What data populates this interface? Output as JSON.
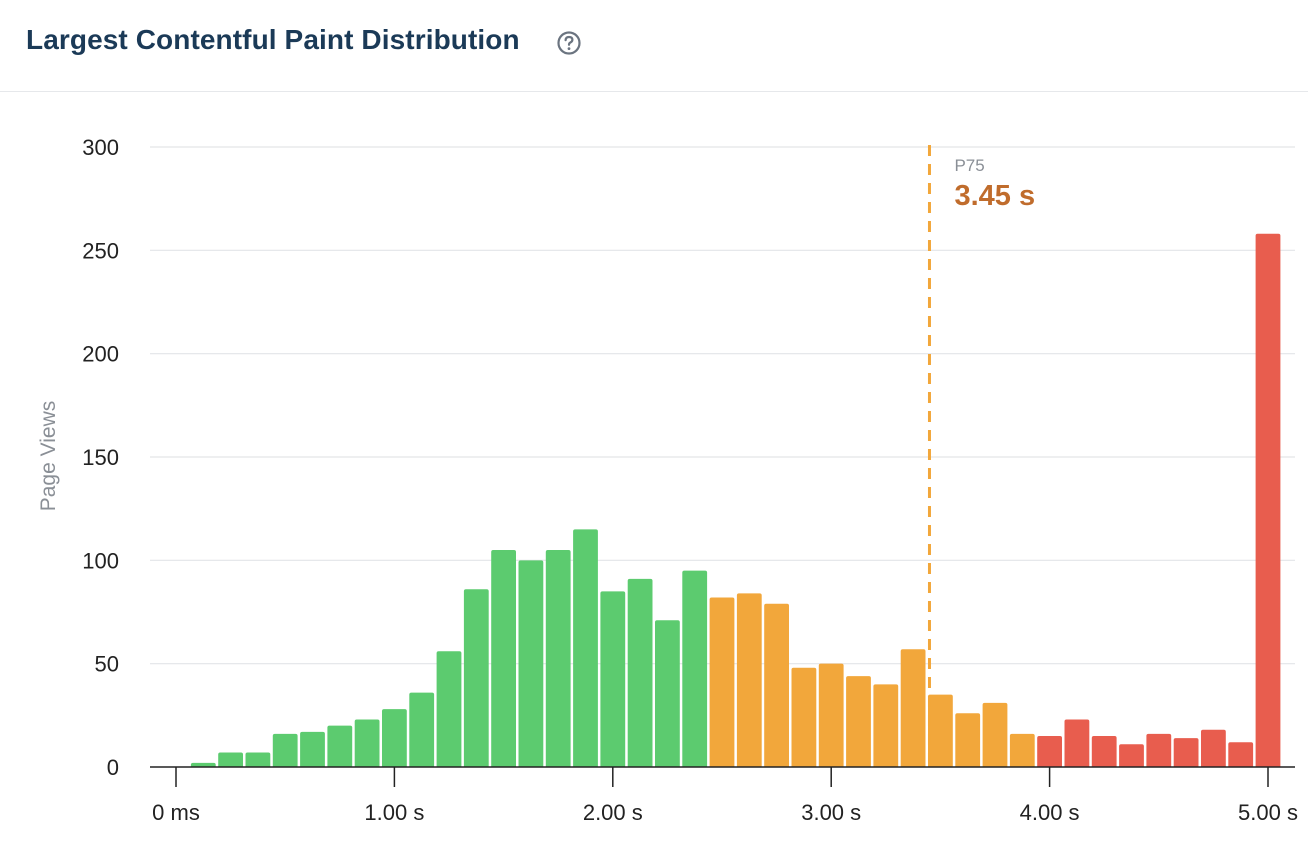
{
  "header": {
    "title": "Largest Contentful Paint Distribution",
    "help_icon": "question-circle-icon"
  },
  "chart_data": {
    "type": "bar",
    "title": "Largest Contentful Paint Distribution",
    "xlabel": "",
    "ylabel": "Page Views",
    "ylim": [
      0,
      300
    ],
    "yticks": [
      0,
      50,
      100,
      150,
      200,
      250,
      300
    ],
    "xlim": [
      0,
      5.0
    ],
    "xtick_values": [
      0,
      1,
      2,
      3,
      4,
      5
    ],
    "xtick_labels": [
      "0 ms",
      "1.00 s",
      "2.00 s",
      "3.00 s",
      "4.00 s",
      "5.00 s"
    ],
    "bin_width_s": 0.125,
    "grid": true,
    "colors": {
      "good": "#5ccb6f",
      "needs_improvement": "#f2a73b",
      "poor": "#e85d4e",
      "p75_line": "#f2a73b"
    },
    "bars": [
      {
        "x": 0.125,
        "value": 2,
        "rating": "good"
      },
      {
        "x": 0.25,
        "value": 7,
        "rating": "good"
      },
      {
        "x": 0.375,
        "value": 7,
        "rating": "good"
      },
      {
        "x": 0.5,
        "value": 16,
        "rating": "good"
      },
      {
        "x": 0.625,
        "value": 17,
        "rating": "good"
      },
      {
        "x": 0.75,
        "value": 20,
        "rating": "good"
      },
      {
        "x": 0.875,
        "value": 23,
        "rating": "good"
      },
      {
        "x": 1.0,
        "value": 28,
        "rating": "good"
      },
      {
        "x": 1.125,
        "value": 36,
        "rating": "good"
      },
      {
        "x": 1.25,
        "value": 56,
        "rating": "good"
      },
      {
        "x": 1.375,
        "value": 86,
        "rating": "good"
      },
      {
        "x": 1.5,
        "value": 105,
        "rating": "good"
      },
      {
        "x": 1.625,
        "value": 100,
        "rating": "good"
      },
      {
        "x": 1.75,
        "value": 105,
        "rating": "good"
      },
      {
        "x": 1.875,
        "value": 115,
        "rating": "good"
      },
      {
        "x": 2.0,
        "value": 85,
        "rating": "good"
      },
      {
        "x": 2.125,
        "value": 91,
        "rating": "good"
      },
      {
        "x": 2.25,
        "value": 71,
        "rating": "good"
      },
      {
        "x": 2.375,
        "value": 95,
        "rating": "good"
      },
      {
        "x": 2.5,
        "value": 82,
        "rating": "needs_improvement"
      },
      {
        "x": 2.625,
        "value": 84,
        "rating": "needs_improvement"
      },
      {
        "x": 2.75,
        "value": 79,
        "rating": "needs_improvement"
      },
      {
        "x": 2.875,
        "value": 48,
        "rating": "needs_improvement"
      },
      {
        "x": 3.0,
        "value": 50,
        "rating": "needs_improvement"
      },
      {
        "x": 3.125,
        "value": 44,
        "rating": "needs_improvement"
      },
      {
        "x": 3.25,
        "value": 40,
        "rating": "needs_improvement"
      },
      {
        "x": 3.375,
        "value": 57,
        "rating": "needs_improvement"
      },
      {
        "x": 3.5,
        "value": 35,
        "rating": "needs_improvement"
      },
      {
        "x": 3.625,
        "value": 26,
        "rating": "needs_improvement"
      },
      {
        "x": 3.75,
        "value": 31,
        "rating": "needs_improvement"
      },
      {
        "x": 3.875,
        "value": 16,
        "rating": "needs_improvement"
      },
      {
        "x": 4.0,
        "value": 15,
        "rating": "poor"
      },
      {
        "x": 4.125,
        "value": 23,
        "rating": "poor"
      },
      {
        "x": 4.25,
        "value": 15,
        "rating": "poor"
      },
      {
        "x": 4.375,
        "value": 11,
        "rating": "poor"
      },
      {
        "x": 4.5,
        "value": 16,
        "rating": "poor"
      },
      {
        "x": 4.625,
        "value": 14,
        "rating": "poor"
      },
      {
        "x": 4.75,
        "value": 18,
        "rating": "poor"
      },
      {
        "x": 4.875,
        "value": 12,
        "rating": "poor"
      },
      {
        "x": 5.0,
        "value": 258,
        "rating": "poor"
      }
    ],
    "annotations": [
      {
        "type": "vline",
        "x": 3.45,
        "label": "P75",
        "value_label": "3.45 s"
      }
    ]
  }
}
